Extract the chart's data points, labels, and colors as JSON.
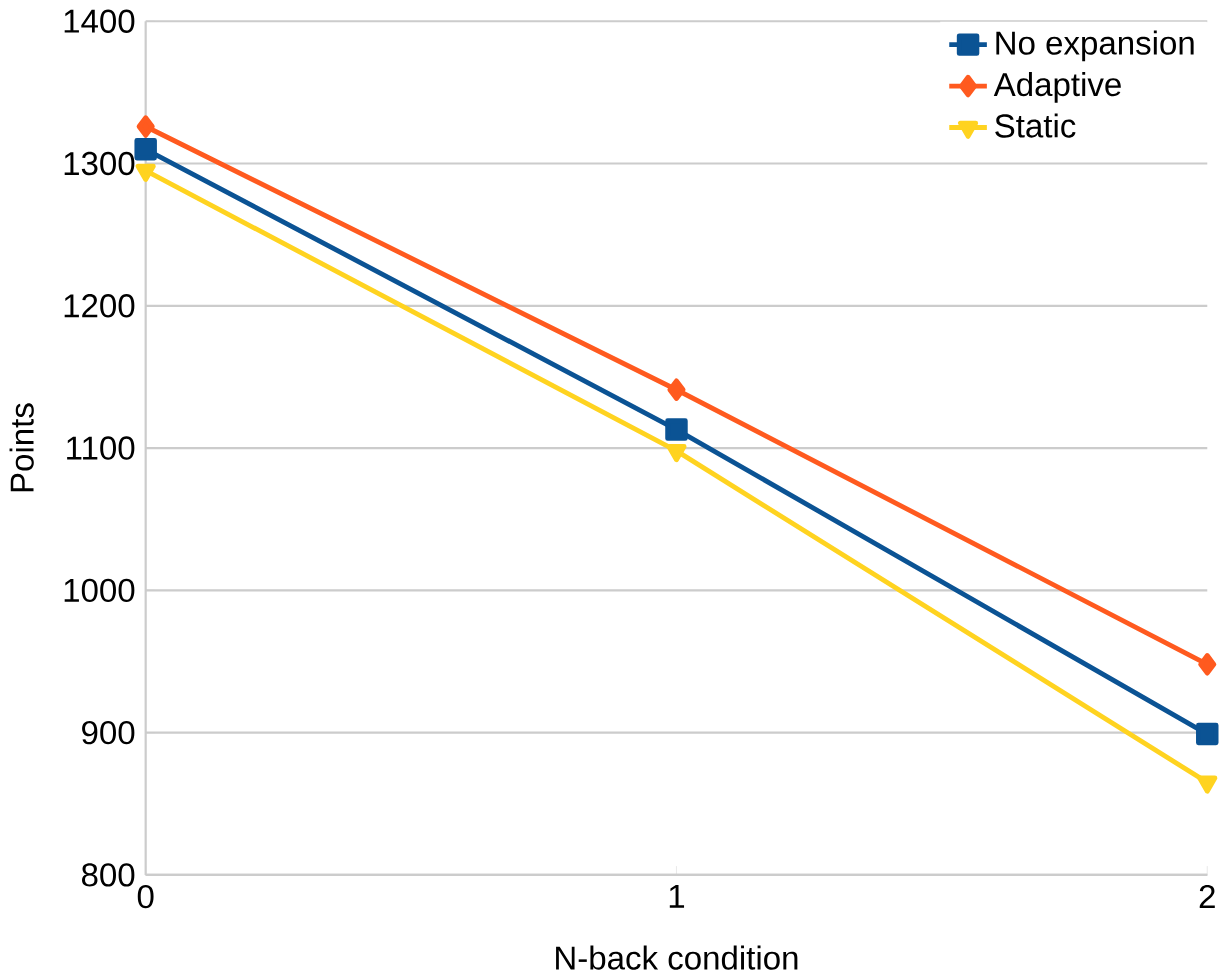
{
  "chart_data": {
    "type": "line",
    "xlabel": "N-back condition",
    "ylabel": "Points",
    "x": [
      0,
      1,
      2
    ],
    "xlim": [
      0,
      2
    ],
    "xticks": [
      0,
      1,
      2
    ],
    "ylim": [
      800,
      1400
    ],
    "yticks": [
      800,
      900,
      1000,
      1100,
      1200,
      1300,
      1400
    ],
    "grid": "y",
    "legend": "top right",
    "line_style": "solid",
    "series": [
      {
        "name": "No expansion",
        "color": "#0b5394",
        "marker": "square",
        "values": [
          1310,
          1113,
          899
        ]
      },
      {
        "name": "Adaptive",
        "color": "#ff5a1f",
        "marker": "diamond",
        "values": [
          1326,
          1141,
          948
        ]
      },
      {
        "name": "Static",
        "color": "#ffd320",
        "marker": "triangle",
        "values": [
          1295,
          1098,
          865
        ]
      }
    ]
  }
}
